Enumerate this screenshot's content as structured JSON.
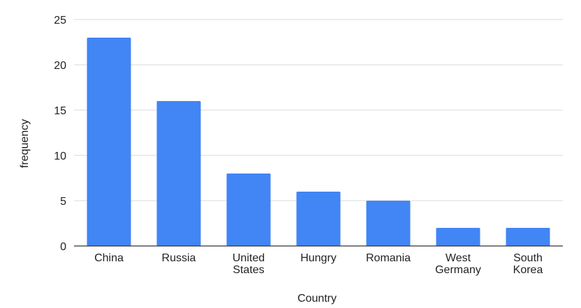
{
  "chart_data": {
    "type": "bar",
    "title": "",
    "xlabel": "Country",
    "ylabel": "frequency",
    "categories": [
      "China",
      "Russia",
      "United States",
      "Hungry",
      "Romania",
      "West Germany",
      "South Korea"
    ],
    "category_lines": [
      [
        "China"
      ],
      [
        "Russia"
      ],
      [
        "United",
        "States"
      ],
      [
        "Hungry"
      ],
      [
        "Romania"
      ],
      [
        "West",
        "Germany"
      ],
      [
        "South",
        "Korea"
      ]
    ],
    "values": [
      23,
      16,
      8,
      6,
      5,
      2,
      2
    ],
    "ylim": [
      0,
      25
    ],
    "yticks": [
      0,
      5,
      10,
      15,
      20,
      25
    ],
    "grid": true,
    "legend": "none",
    "colors": {
      "bar": "#4285f4",
      "grid": "#d9d9d9",
      "axis": "#333333",
      "text": "#222222"
    }
  }
}
